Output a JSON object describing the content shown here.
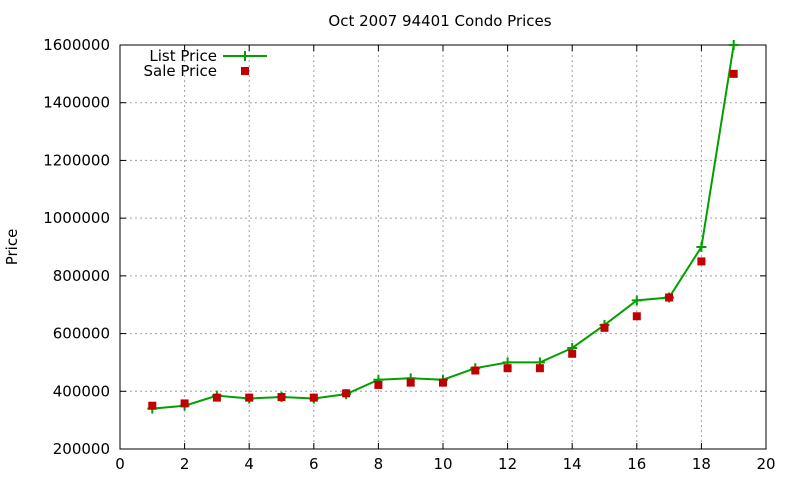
{
  "chart_data": {
    "type": "line",
    "title": "Oct 2007 94401 Condo Prices",
    "xlabel": "",
    "ylabel": "Price",
    "xlim": [
      0,
      20
    ],
    "ylim": [
      200000,
      1600000
    ],
    "x_ticks": [
      "0",
      "2",
      "4",
      "6",
      "8",
      "10",
      "12",
      "14",
      "16",
      "18",
      "20"
    ],
    "y_ticks": [
      "200000",
      "400000",
      "600000",
      "800000",
      "1000000",
      "1200000",
      "1400000",
      "1600000"
    ],
    "grid": true,
    "legend_position": "top-left",
    "series": [
      {
        "name": "List Price",
        "style": "line-with-plus-markers",
        "color": "#00a000",
        "x": [
          1,
          2,
          3,
          4,
          5,
          6,
          7,
          8,
          9,
          10,
          11,
          12,
          13,
          14,
          15,
          16,
          17,
          18,
          19
        ],
        "values": [
          340000,
          350000,
          385000,
          375000,
          380000,
          375000,
          390000,
          440000,
          445000,
          440000,
          480000,
          500000,
          500000,
          550000,
          630000,
          715000,
          725000,
          900000,
          1600000
        ]
      },
      {
        "name": "Sale Price",
        "style": "square-markers",
        "color": "#c00000",
        "x": [
          1,
          2,
          3,
          4,
          5,
          6,
          7,
          8,
          9,
          10,
          11,
          12,
          13,
          14,
          15,
          16,
          17,
          18,
          19
        ],
        "values": [
          350000,
          358000,
          378000,
          378000,
          380000,
          378000,
          393000,
          422000,
          430000,
          430000,
          472000,
          480000,
          480000,
          530000,
          620000,
          660000,
          725000,
          850000,
          1500000
        ]
      }
    ]
  }
}
